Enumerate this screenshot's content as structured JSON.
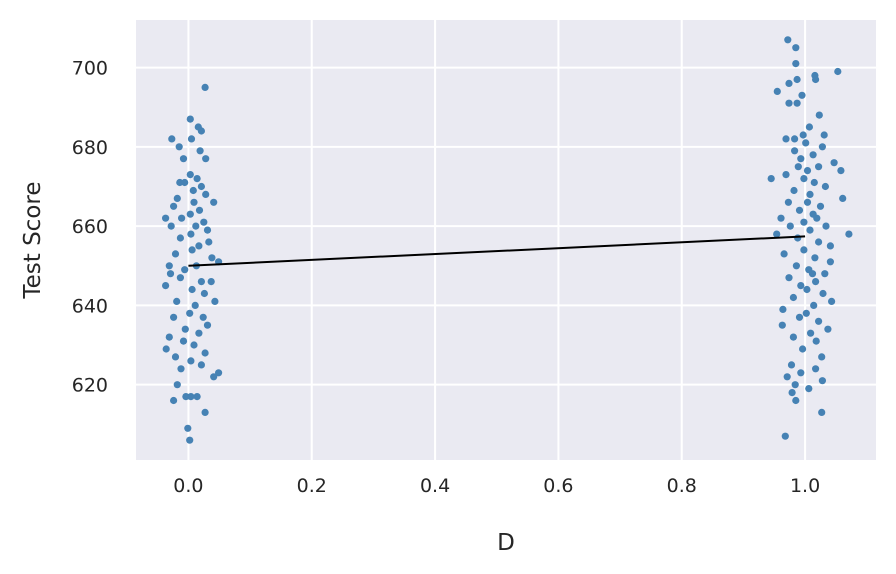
{
  "chart_data": {
    "type": "scatter",
    "title": "",
    "xlabel": "D",
    "ylabel": "Test Score",
    "xlim": [
      -0.085,
      1.115
    ],
    "ylim": [
      601,
      712
    ],
    "xticks": [
      0.0,
      0.2,
      0.4,
      0.6,
      0.8,
      1.0
    ],
    "xtick_labels": [
      "0.0",
      "0.2",
      "0.4",
      "0.6",
      "0.8",
      "1.0"
    ],
    "yticks": [
      620,
      640,
      660,
      680,
      700
    ],
    "ytick_labels": [
      "620",
      "640",
      "660",
      "680",
      "700"
    ],
    "grid": true,
    "legend": "none",
    "colors": {
      "background": "#eaeaf2",
      "grid": "#ffffff",
      "points": "#4682b4",
      "fit_line": "#000000"
    },
    "fit_line": {
      "x": [
        0.0,
        1.0
      ],
      "y": [
        650.0,
        657.4
      ]
    },
    "series": [
      {
        "group": 0,
        "points": [
          [
            0.027,
            695
          ],
          [
            0.003,
            687
          ],
          [
            0.016,
            685
          ],
          [
            0.021,
            684
          ],
          [
            -0.027,
            682
          ],
          [
            0.005,
            682
          ],
          [
            -0.015,
            680
          ],
          [
            0.028,
            677
          ],
          [
            -0.008,
            677
          ],
          [
            0.003,
            673
          ],
          [
            0.014,
            672
          ],
          [
            -0.006,
            671
          ],
          [
            0.021,
            670
          ],
          [
            0.028,
            668
          ],
          [
            -0.018,
            667
          ],
          [
            0.009,
            666
          ],
          [
            -0.024,
            665
          ],
          [
            0.041,
            666
          ],
          [
            0.018,
            664
          ],
          [
            0.003,
            663
          ],
          [
            -0.011,
            662
          ],
          [
            -0.037,
            662
          ],
          [
            -0.028,
            660
          ],
          [
            0.012,
            660
          ],
          [
            0.025,
            661
          ],
          [
            0.004,
            658
          ],
          [
            -0.013,
            657
          ],
          [
            0.033,
            656
          ],
          [
            0.017,
            655
          ],
          [
            0.006,
            654
          ],
          [
            -0.021,
            653
          ],
          [
            0.038,
            652
          ],
          [
            0.049,
            651
          ],
          [
            0.013,
            650
          ],
          [
            -0.006,
            649
          ],
          [
            -0.029,
            648
          ],
          [
            -0.013,
            647
          ],
          [
            0.021,
            646
          ],
          [
            -0.037,
            645
          ],
          [
            0.006,
            644
          ],
          [
            0.026,
            643
          ],
          [
            0.043,
            641
          ],
          [
            -0.019,
            641
          ],
          [
            0.011,
            640
          ],
          [
            0.002,
            638
          ],
          [
            -0.024,
            637
          ],
          [
            0.031,
            635
          ],
          [
            0.017,
            633
          ],
          [
            -0.031,
            632
          ],
          [
            -0.008,
            631
          ],
          [
            0.009,
            630
          ],
          [
            -0.036,
            629
          ],
          [
            0.027,
            628
          ],
          [
            -0.021,
            627
          ],
          [
            0.004,
            626
          ],
          [
            -0.012,
            624
          ],
          [
            0.049,
            623
          ],
          [
            0.041,
            622
          ],
          [
            0.021,
            625
          ],
          [
            -0.018,
            620
          ],
          [
            -0.024,
            616
          ],
          [
            0.004,
            617
          ],
          [
            0.014,
            617
          ],
          [
            -0.004,
            617
          ],
          [
            0.027,
            613
          ],
          [
            -0.001,
            609
          ],
          [
            0.002,
            606
          ],
          [
            0.019,
            679
          ],
          [
            -0.014,
            671
          ],
          [
            0.031,
            659
          ],
          [
            0.008,
            669
          ],
          [
            -0.031,
            650
          ],
          [
            0.024,
            637
          ],
          [
            -0.005,
            634
          ],
          [
            0.037,
            646
          ]
        ]
      },
      {
        "group": 1,
        "points": [
          [
            0.972,
            707
          ],
          [
            0.985,
            705
          ],
          [
            0.985,
            701
          ],
          [
            1.053,
            699
          ],
          [
            1.016,
            698
          ],
          [
            0.987,
            697
          ],
          [
            1.017,
            697
          ],
          [
            0.974,
            696
          ],
          [
            0.955,
            694
          ],
          [
            0.995,
            693
          ],
          [
            0.974,
            691
          ],
          [
            0.987,
            691
          ],
          [
            1.023,
            688
          ],
          [
            1.007,
            685
          ],
          [
            0.997,
            683
          ],
          [
            1.031,
            683
          ],
          [
            0.983,
            682
          ],
          [
            1.001,
            681
          ],
          [
            0.969,
            682
          ],
          [
            1.028,
            680
          ],
          [
            0.983,
            679
          ],
          [
            1.013,
            678
          ],
          [
            0.993,
            677
          ],
          [
            1.047,
            676
          ],
          [
            1.022,
            675
          ],
          [
            1.004,
            674
          ],
          [
            0.969,
            673
          ],
          [
            1.058,
            674
          ],
          [
            0.998,
            672
          ],
          [
            0.945,
            672
          ],
          [
            1.015,
            671
          ],
          [
            1.033,
            670
          ],
          [
            0.982,
            669
          ],
          [
            1.008,
            668
          ],
          [
            1.061,
            667
          ],
          [
            0.973,
            666
          ],
          [
            1.025,
            665
          ],
          [
            0.991,
            664
          ],
          [
            1.013,
            663
          ],
          [
            0.961,
            662
          ],
          [
            0.998,
            661
          ],
          [
            1.034,
            660
          ],
          [
            1.008,
            659
          ],
          [
            0.954,
            658
          ],
          [
            1.071,
            658
          ],
          [
            0.988,
            657
          ],
          [
            1.022,
            656
          ],
          [
            1.041,
            655
          ],
          [
            0.998,
            654
          ],
          [
            0.966,
            653
          ],
          [
            1.016,
            652
          ],
          [
            1.041,
            651
          ],
          [
            0.986,
            650
          ],
          [
            1.006,
            649
          ],
          [
            1.032,
            648
          ],
          [
            0.974,
            647
          ],
          [
            1.017,
            646
          ],
          [
            0.993,
            645
          ],
          [
            1.003,
            644
          ],
          [
            1.029,
            643
          ],
          [
            0.981,
            642
          ],
          [
            1.043,
            641
          ],
          [
            1.014,
            640
          ],
          [
            0.964,
            639
          ],
          [
            1.002,
            638
          ],
          [
            0.991,
            637
          ],
          [
            1.022,
            636
          ],
          [
            0.963,
            635
          ],
          [
            1.037,
            634
          ],
          [
            1.009,
            633
          ],
          [
            0.981,
            632
          ],
          [
            1.018,
            631
          ],
          [
            0.996,
            629
          ],
          [
            1.027,
            627
          ],
          [
            0.978,
            625
          ],
          [
            1.017,
            624
          ],
          [
            0.993,
            623
          ],
          [
            0.971,
            622
          ],
          [
            1.028,
            621
          ],
          [
            0.984,
            620
          ],
          [
            1.006,
            619
          ],
          [
            0.979,
            618
          ],
          [
            0.985,
            616
          ],
          [
            1.027,
            613
          ],
          [
            0.968,
            607
          ],
          [
            1.004,
            666
          ],
          [
            0.989,
            675
          ],
          [
            1.012,
            648
          ],
          [
            0.976,
            660
          ],
          [
            1.019,
            662
          ]
        ]
      }
    ]
  }
}
